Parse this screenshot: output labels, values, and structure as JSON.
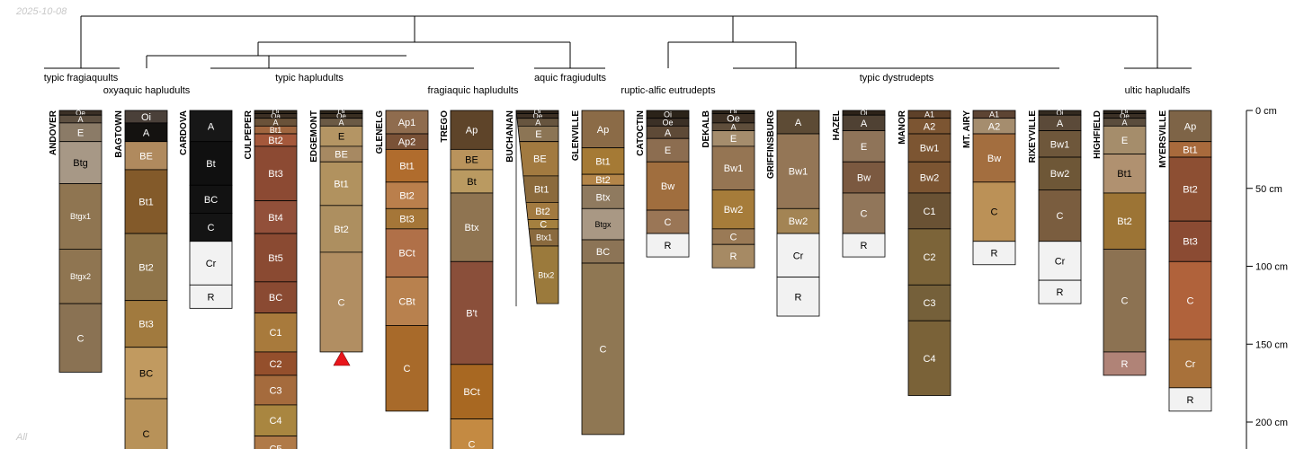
{
  "date_stamp": "2025-10-08",
  "footer_note": "All",
  "depth_axis": {
    "unit": "cm",
    "ticks": [
      {
        "depth": 0,
        "label": "0 cm"
      },
      {
        "depth": 50,
        "label": "50 cm"
      },
      {
        "depth": 100,
        "label": "100 cm"
      },
      {
        "depth": 150,
        "label": "150 cm"
      },
      {
        "depth": 200,
        "label": "200 cm"
      }
    ]
  },
  "taxa_labels": [
    "typic fragiaquults",
    "oxyaquic hapludults",
    "typic hapludults",
    "fragiaquic hapludults",
    "aquic fragiudults",
    "ruptic-alfic eutrudepts",
    "typic dystrudepts",
    "ultic hapludalfs"
  ],
  "profiles": [
    {
      "name": "ANDOVER",
      "horizons": [
        {
          "name": "Oe",
          "top": 0,
          "bottom": 3,
          "color": "#3b3026"
        },
        {
          "name": "A",
          "top": 3,
          "bottom": 8,
          "color": "#5e5041"
        },
        {
          "name": "E",
          "top": 8,
          "bottom": 20,
          "color": "#8b7b67"
        },
        {
          "name": "Btg",
          "top": 20,
          "bottom": 47,
          "color": "#a79886"
        },
        {
          "name": "Btgx1",
          "top": 47,
          "bottom": 89,
          "color": "#8f7551"
        },
        {
          "name": "Btgx2",
          "top": 89,
          "bottom": 124,
          "color": "#8f7551"
        },
        {
          "name": "C",
          "top": 124,
          "bottom": 168,
          "color": "#8a7253"
        }
      ]
    },
    {
      "name": "BAGTOWN",
      "horizons": [
        {
          "name": "Oi",
          "top": 0,
          "bottom": 8,
          "color": "#4a4039"
        },
        {
          "name": "A",
          "top": 8,
          "bottom": 20,
          "color": "#141210"
        },
        {
          "name": "BE",
          "top": 20,
          "bottom": 38,
          "color": "#b08a5e"
        },
        {
          "name": "Bt1",
          "top": 38,
          "bottom": 79,
          "color": "#835a2a"
        },
        {
          "name": "Bt2",
          "top": 79,
          "bottom": 122,
          "color": "#8f7449"
        },
        {
          "name": "Bt3",
          "top": 122,
          "bottom": 152,
          "color": "#a17a3e"
        },
        {
          "name": "BC",
          "top": 152,
          "bottom": 185,
          "color": "#c19a60"
        },
        {
          "name": "C",
          "top": 185,
          "bottom": 230,
          "color": "#b89259"
        }
      ]
    },
    {
      "name": "CARDOVA",
      "horizons": [
        {
          "name": "A",
          "top": 0,
          "bottom": 20,
          "color": "#171717"
        },
        {
          "name": "Bt",
          "top": 20,
          "bottom": 48,
          "color": "#101010"
        },
        {
          "name": "BC",
          "top": 48,
          "bottom": 66,
          "color": "#121212"
        },
        {
          "name": "C",
          "top": 66,
          "bottom": 84,
          "color": "#141414"
        },
        {
          "name": "Cr",
          "top": 84,
          "bottom": 112,
          "color": "#f2f2f2"
        },
        {
          "name": "R",
          "top": 112,
          "bottom": 127,
          "color": "#f2f2f2"
        }
      ]
    },
    {
      "name": "CULPEPER",
      "horizons": [
        {
          "name": "Oi",
          "top": 0,
          "bottom": 2,
          "color": "#2e2519"
        },
        {
          "name": "Oa",
          "top": 2,
          "bottom": 5,
          "color": "#3d3024"
        },
        {
          "name": "A",
          "top": 5,
          "bottom": 10,
          "color": "#6a5239"
        },
        {
          "name": "Bt1",
          "top": 10,
          "bottom": 15,
          "color": "#a0663f"
        },
        {
          "name": "Bt2",
          "top": 15,
          "bottom": 23,
          "color": "#a5583b"
        },
        {
          "name": "Bt3",
          "top": 23,
          "bottom": 58,
          "color": "#8c4a33"
        },
        {
          "name": "Bt4",
          "top": 58,
          "bottom": 79,
          "color": "#92503a"
        },
        {
          "name": "Bt5",
          "top": 79,
          "bottom": 110,
          "color": "#8a4a32"
        },
        {
          "name": "BC",
          "top": 110,
          "bottom": 130,
          "color": "#8a4a32"
        },
        {
          "name": "C1",
          "top": 130,
          "bottom": 155,
          "color": "#a87a3c"
        },
        {
          "name": "C2",
          "top": 155,
          "bottom": 170,
          "color": "#944f2c"
        },
        {
          "name": "C3",
          "top": 170,
          "bottom": 189,
          "color": "#a56b3d"
        },
        {
          "name": "C4",
          "top": 189,
          "bottom": 209,
          "color": "#a98640"
        },
        {
          "name": "C5",
          "top": 209,
          "bottom": 225,
          "color": "#b07a48"
        }
      ]
    },
    {
      "name": "EDGEMONT",
      "horizons": [
        {
          "name": "Oi",
          "top": 0,
          "bottom": 2,
          "color": "#2c2419"
        },
        {
          "name": "Oe",
          "top": 2,
          "bottom": 5,
          "color": "#3a2f22"
        },
        {
          "name": "A",
          "top": 5,
          "bottom": 10,
          "color": "#6b5a45"
        },
        {
          "name": "E",
          "top": 10,
          "bottom": 23,
          "color": "#b49564"
        },
        {
          "name": "BE",
          "top": 23,
          "bottom": 33,
          "color": "#a78962"
        },
        {
          "name": "Bt1",
          "top": 33,
          "bottom": 61,
          "color": "#b1925f"
        },
        {
          "name": "Bt2",
          "top": 61,
          "bottom": 91,
          "color": "#ad8f60"
        },
        {
          "name": "C",
          "top": 91,
          "bottom": 155,
          "color": "#b18e62"
        }
      ]
    },
    {
      "name": "GLENELG",
      "horizons": [
        {
          "name": "Ap1",
          "top": 0,
          "bottom": 15,
          "color": "#8f6c4e"
        },
        {
          "name": "Ap2",
          "top": 15,
          "bottom": 25,
          "color": "#7a5237"
        },
        {
          "name": "Bt1",
          "top": 25,
          "bottom": 46,
          "color": "#b06c2d"
        },
        {
          "name": "Bt2",
          "top": 46,
          "bottom": 63,
          "color": "#ba7f4c"
        },
        {
          "name": "Bt3",
          "top": 63,
          "bottom": 76,
          "color": "#a57638"
        },
        {
          "name": "BCt",
          "top": 76,
          "bottom": 107,
          "color": "#b07048"
        },
        {
          "name": "CBt",
          "top": 107,
          "bottom": 138,
          "color": "#b8814e"
        },
        {
          "name": "C",
          "top": 138,
          "bottom": 193,
          "color": "#a86a2a"
        }
      ]
    },
    {
      "name": "TREGO",
      "horizons": [
        {
          "name": "Ap",
          "top": 0,
          "bottom": 25,
          "color": "#5e4429"
        },
        {
          "name": "BE",
          "top": 25,
          "bottom": 38,
          "color": "#b9935c"
        },
        {
          "name": "Bt",
          "top": 38,
          "bottom": 53,
          "color": "#ba9a61"
        },
        {
          "name": "Btx",
          "top": 53,
          "bottom": 97,
          "color": "#8f7451"
        },
        {
          "name": "B't",
          "top": 97,
          "bottom": 163,
          "color": "#8a4f3a"
        },
        {
          "name": "BCt",
          "top": 163,
          "bottom": 198,
          "color": "#a86822"
        },
        {
          "name": "C",
          "top": 198,
          "bottom": 230,
          "color": "#c48a42"
        }
      ]
    },
    {
      "name": "BUCHANAN",
      "wedge": true,
      "horizons": [
        {
          "name": "Oi",
          "top": 0,
          "bottom": 2,
          "color": "#2d2319"
        },
        {
          "name": "Oe",
          "top": 2,
          "bottom": 5,
          "color": "#3d3024"
        },
        {
          "name": "A",
          "top": 5,
          "bottom": 10,
          "color": "#67553f"
        },
        {
          "name": "E",
          "top": 10,
          "bottom": 20,
          "color": "#8c7555"
        },
        {
          "name": "BE",
          "top": 20,
          "bottom": 42,
          "color": "#a27a40"
        },
        {
          "name": "Bt1",
          "top": 42,
          "bottom": 59,
          "color": "#8b6a3c"
        },
        {
          "name": "Bt2",
          "top": 59,
          "bottom": 70,
          "color": "#a27a40"
        },
        {
          "name": "C",
          "top": 70,
          "bottom": 76,
          "color": "#a4803f"
        },
        {
          "name": "Btx1",
          "top": 76,
          "bottom": 87,
          "color": "#8a6a3e"
        },
        {
          "name": "Btx2",
          "top": 87,
          "bottom": 124,
          "color": "#9b7a3c"
        }
      ]
    },
    {
      "name": "GLENVILLE",
      "horizons": [
        {
          "name": "Ap",
          "top": 0,
          "bottom": 24,
          "color": "#8b6b47"
        },
        {
          "name": "Bt1",
          "top": 24,
          "bottom": 41,
          "color": "#a57a35"
        },
        {
          "name": "Bt2",
          "top": 41,
          "bottom": 48,
          "color": "#b38549"
        },
        {
          "name": "Btx",
          "top": 48,
          "bottom": 63,
          "color": "#8f7a5f"
        },
        {
          "name": "Btgx",
          "top": 63,
          "bottom": 83,
          "color": "#a99884"
        },
        {
          "name": "BC",
          "top": 83,
          "bottom": 98,
          "color": "#8c7456"
        },
        {
          "name": "C",
          "top": 98,
          "bottom": 208,
          "color": "#8f7753"
        }
      ]
    },
    {
      "name": "CATOCTIN",
      "horizons": [
        {
          "name": "Oi",
          "top": 0,
          "bottom": 5,
          "color": "#2b2319"
        },
        {
          "name": "Oe",
          "top": 5,
          "bottom": 10,
          "color": "#3b3026"
        },
        {
          "name": "A",
          "top": 10,
          "bottom": 18,
          "color": "#5e4a37"
        },
        {
          "name": "E",
          "top": 18,
          "bottom": 33,
          "color": "#8c6d50"
        },
        {
          "name": "Bw",
          "top": 33,
          "bottom": 64,
          "color": "#a06e3e"
        },
        {
          "name": "C",
          "top": 64,
          "bottom": 79,
          "color": "#9a7656"
        },
        {
          "name": "R",
          "top": 79,
          "bottom": 94,
          "color": "#f2f2f2"
        }
      ]
    },
    {
      "name": "DEKALB",
      "horizons": [
        {
          "name": "Oi",
          "top": 0,
          "bottom": 2,
          "color": "#2b2319"
        },
        {
          "name": "Oe",
          "top": 2,
          "bottom": 8,
          "color": "#3d3024"
        },
        {
          "name": "A",
          "top": 8,
          "bottom": 13,
          "color": "#5f4e3b"
        },
        {
          "name": "E",
          "top": 13,
          "bottom": 23,
          "color": "#a58d6d"
        },
        {
          "name": "Bw1",
          "top": 23,
          "bottom": 51,
          "color": "#957553"
        },
        {
          "name": "Bw2",
          "top": 51,
          "bottom": 76,
          "color": "#a67c3a"
        },
        {
          "name": "C",
          "top": 76,
          "bottom": 86,
          "color": "#9a7a56"
        },
        {
          "name": "R",
          "top": 86,
          "bottom": 101,
          "color": "#a68a64"
        }
      ]
    },
    {
      "name": "GRIFFINSBURG",
      "horizons": [
        {
          "name": "A",
          "top": 0,
          "bottom": 15,
          "color": "#5d4b35"
        },
        {
          "name": "Bw1",
          "top": 15,
          "bottom": 63,
          "color": "#947656"
        },
        {
          "name": "Bw2",
          "top": 63,
          "bottom": 79,
          "color": "#a38454"
        },
        {
          "name": "Cr",
          "top": 79,
          "bottom": 107,
          "color": "#f2f2f2"
        },
        {
          "name": "R",
          "top": 107,
          "bottom": 132,
          "color": "#f2f2f2"
        }
      ]
    },
    {
      "name": "HAZEL",
      "horizons": [
        {
          "name": "Oi",
          "top": 0,
          "bottom": 3,
          "color": "#2d2319"
        },
        {
          "name": "A",
          "top": 3,
          "bottom": 13,
          "color": "#4f4133"
        },
        {
          "name": "E",
          "top": 13,
          "bottom": 33,
          "color": "#8f7459"
        },
        {
          "name": "Bw",
          "top": 33,
          "bottom": 53,
          "color": "#7b5940"
        },
        {
          "name": "C",
          "top": 53,
          "bottom": 79,
          "color": "#91765a"
        },
        {
          "name": "R",
          "top": 79,
          "bottom": 94,
          "color": "#f2f2f2"
        }
      ]
    },
    {
      "name": "MANOR",
      "horizons": [
        {
          "name": "A1",
          "top": 0,
          "bottom": 5,
          "color": "#5e4129"
        },
        {
          "name": "A2",
          "top": 5,
          "bottom": 15,
          "color": "#7c5532"
        },
        {
          "name": "Bw1",
          "top": 15,
          "bottom": 33,
          "color": "#7c5532"
        },
        {
          "name": "Bw2",
          "top": 33,
          "bottom": 53,
          "color": "#7c5532"
        },
        {
          "name": "C1",
          "top": 53,
          "bottom": 76,
          "color": "#6a5234"
        },
        {
          "name": "C2",
          "top": 76,
          "bottom": 112,
          "color": "#7c6439"
        },
        {
          "name": "C3",
          "top": 112,
          "bottom": 135,
          "color": "#75603a"
        },
        {
          "name": "C4",
          "top": 135,
          "bottom": 183,
          "color": "#7a6238"
        }
      ]
    },
    {
      "name": "MT. AIRY",
      "horizons": [
        {
          "name": "A1",
          "top": 0,
          "bottom": 5,
          "color": "#5d4433"
        },
        {
          "name": "A2",
          "top": 5,
          "bottom": 15,
          "color": "#a58d6e"
        },
        {
          "name": "Bw",
          "top": 15,
          "bottom": 46,
          "color": "#a36e3f"
        },
        {
          "name": "C",
          "top": 46,
          "bottom": 84,
          "color": "#bb9157"
        },
        {
          "name": "R",
          "top": 84,
          "bottom": 99,
          "color": "#f2f2f2"
        }
      ]
    },
    {
      "name": "RIXEYVILLE",
      "horizons": [
        {
          "name": "Oi",
          "top": 0,
          "bottom": 3,
          "color": "#332a20"
        },
        {
          "name": "A",
          "top": 3,
          "bottom": 13,
          "color": "#5b4a39"
        },
        {
          "name": "Bw1",
          "top": 13,
          "bottom": 30,
          "color": "#6e573b"
        },
        {
          "name": "Bw2",
          "top": 30,
          "bottom": 51,
          "color": "#6e5737"
        },
        {
          "name": "C",
          "top": 51,
          "bottom": 84,
          "color": "#7a5d3f"
        },
        {
          "name": "Cr",
          "top": 84,
          "bottom": 109,
          "color": "#f2f2f2"
        },
        {
          "name": "R",
          "top": 109,
          "bottom": 124,
          "color": "#f2f2f2"
        }
      ]
    },
    {
      "name": "HIGHFIELD",
      "horizons": [
        {
          "name": "Oi",
          "top": 0,
          "bottom": 2,
          "color": "#2b2319"
        },
        {
          "name": "Oe",
          "top": 2,
          "bottom": 5,
          "color": "#3c3126"
        },
        {
          "name": "A",
          "top": 5,
          "bottom": 10,
          "color": "#5b4d3d"
        },
        {
          "name": "E",
          "top": 10,
          "bottom": 28,
          "color": "#a58d6b"
        },
        {
          "name": "Bt1",
          "top": 28,
          "bottom": 53,
          "color": "#b09170"
        },
        {
          "name": "Bt2",
          "top": 53,
          "bottom": 89,
          "color": "#9c7435"
        },
        {
          "name": "C",
          "top": 89,
          "bottom": 155,
          "color": "#8c7252"
        },
        {
          "name": "R",
          "top": 155,
          "bottom": 170,
          "color": "#b08377"
        }
      ]
    },
    {
      "name": "MYERSVILLE",
      "horizons": [
        {
          "name": "Ap",
          "top": 0,
          "bottom": 20,
          "color": "#7e6447"
        },
        {
          "name": "Bt1",
          "top": 20,
          "bottom": 30,
          "color": "#a86a3c"
        },
        {
          "name": "Bt2",
          "top": 30,
          "bottom": 71,
          "color": "#8d4f33"
        },
        {
          "name": "Bt3",
          "top": 71,
          "bottom": 97,
          "color": "#8b4b33"
        },
        {
          "name": "C",
          "top": 97,
          "bottom": 147,
          "color": "#b0623b"
        },
        {
          "name": "Cr",
          "top": 147,
          "bottom": 178,
          "color": "#a8713a"
        },
        {
          "name": "R",
          "top": 178,
          "bottom": 193,
          "color": "#f2f2f2"
        }
      ]
    }
  ]
}
